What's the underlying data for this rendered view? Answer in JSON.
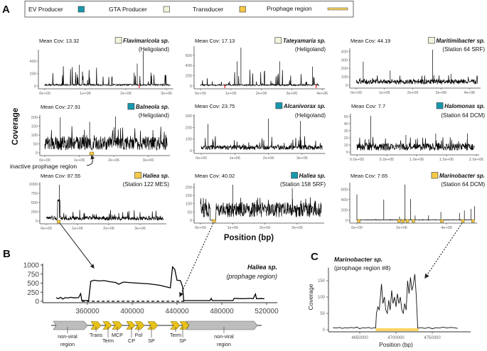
{
  "figure": {
    "panel_letters": [
      "A",
      "B",
      "C"
    ],
    "legend": {
      "items": [
        {
          "label": "EV Producer",
          "color": "#1798ad"
        },
        {
          "label": "GTA Producer",
          "color": "#f3f3dc"
        },
        {
          "label": "Transducer",
          "color": "#f7c948"
        },
        {
          "label": "Prophage region",
          "color": "#f9d462"
        }
      ]
    },
    "shared_ylabel": "Coverage",
    "shared_xlabel": "Position (bp)",
    "annotation_inactive": "inactive prophage region",
    "colors": {
      "trace": "#000000",
      "highlight_mark": "#e0201b",
      "gene_viral": "#e8c21a",
      "gene_nonviral": "#bdbdbd"
    }
  },
  "chart_data": [
    {
      "type": "line",
      "mean_cov_label": "Mean Cov: 13.32",
      "organism": "Flavimaricola sp.",
      "location": "(Heligoland)",
      "role": "GTA Producer",
      "xlim": [
        0,
        3100000
      ],
      "ylim": [
        0,
        560
      ],
      "yticks": [
        0,
        200,
        400
      ],
      "xticks": [
        0,
        1000000,
        2000000,
        3000000
      ],
      "xtick_labels": [
        "0e+00",
        "1e+06",
        "2e+06",
        "3e+06"
      ],
      "typical_coverage": 20,
      "spike_max": 350,
      "peaks": [
        [
          2430000,
          560
        ],
        [
          2280000,
          360
        ],
        [
          850000,
          340
        ]
      ],
      "highlight_marks": [
        2330000
      ],
      "prophage_regions": []
    },
    {
      "type": "line",
      "mean_cov_label": "Mean Cov: 17.13",
      "organism": "Tateyamaria sp.",
      "location": "(Heligoland)",
      "role": "GTA Producer",
      "xlim": [
        0,
        3900000
      ],
      "ylim": [
        0,
        750
      ],
      "yticks": [
        0,
        200,
        400,
        600
      ],
      "xticks": [
        0,
        1000000,
        2000000,
        3000000,
        4000000
      ],
      "xtick_labels": [
        "0e+00",
        "1e+06",
        "2e+06",
        "3e+06",
        "4e+06"
      ],
      "typical_coverage": 20,
      "spike_max": 320,
      "peaks": [
        [
          1330000,
          750
        ],
        [
          1200000,
          480
        ],
        [
          2600000,
          480
        ],
        [
          3680000,
          380
        ]
      ],
      "highlight_marks": [
        800000,
        3800000
      ],
      "prophage_regions": []
    },
    {
      "type": "line",
      "mean_cov_label": "Mean Cov: 44.19",
      "organism": "Maritimibacter sp.",
      "location": "(Station 64 SRF)",
      "role": "GTA Producer",
      "xlim": [
        0,
        4300000
      ],
      "ylim": [
        0,
        420
      ],
      "yticks": [
        0,
        100,
        200,
        300,
        400
      ],
      "xticks": [
        0,
        1000000,
        2000000,
        3000000,
        4000000
      ],
      "xtick_labels": [
        "0e+00",
        "1e+06",
        "2e+06",
        "3e+06",
        "4e+06"
      ],
      "typical_coverage": 45,
      "spike_max": 120,
      "peaks": [
        [
          250000,
          280
        ],
        [
          2700000,
          420
        ],
        [
          1200000,
          175
        ],
        [
          3350000,
          135
        ]
      ],
      "highlight_marks": [],
      "prophage_regions": []
    },
    {
      "type": "line",
      "mean_cov_label": "Mean Cov: 27.91",
      "organism": "Balneola sp.",
      "location": "(Heligoland)",
      "role": "EV Producer",
      "xlim": [
        0,
        3550000
      ],
      "ylim": [
        0,
        205
      ],
      "yticks": [
        0,
        50,
        100,
        150,
        200
      ],
      "xticks": [
        0,
        1000000,
        2000000,
        3000000
      ],
      "xtick_labels": [
        "0e+00",
        "1e+06",
        "2e+06",
        "3e+06"
      ],
      "typical_coverage": 60,
      "spike_max": 160,
      "peaks": [
        [
          2050000,
          205
        ],
        [
          450000,
          200
        ],
        [
          1300000,
          175
        ]
      ],
      "highlight_marks": [],
      "prophage_regions": [
        [
          1300000,
          1420000
        ]
      ]
    },
    {
      "type": "line",
      "mean_cov_label": "Mean Cov: 23.75",
      "organism": "Alcanivorax sp.",
      "location": "(Heligoland)",
      "role": "EV Producer",
      "xlim": [
        0,
        3600000
      ],
      "ylim": [
        0,
        300
      ],
      "yticks": [
        0,
        100,
        200,
        300
      ],
      "xticks": [
        0,
        1000000,
        2000000,
        3000000
      ],
      "xtick_labels": [
        "0e+00",
        "1e+06",
        "2e+06",
        "3e+06"
      ],
      "typical_coverage": 30,
      "spike_max": 125,
      "peaks": [
        [
          200000,
          230
        ],
        [
          2000000,
          275
        ],
        [
          2950000,
          255
        ]
      ],
      "highlight_marks": [],
      "prophage_regions": []
    },
    {
      "type": "line",
      "mean_cov_label": "Mean Cov: 7.7",
      "organism": "Halomonas sp.",
      "location": "(Station 64 DCM)",
      "role": "EV Producer",
      "xlim": [
        0,
        1970000
      ],
      "ylim": [
        0,
        52
      ],
      "yticks": [
        0,
        10,
        20,
        30,
        40,
        50
      ],
      "xticks": [
        0,
        500000,
        1000000,
        1500000,
        2000000
      ],
      "xtick_labels": [
        "0.0e+00",
        "5.0e+05",
        "1.0e+06",
        "1.5e+06",
        "2.0e+06"
      ],
      "typical_coverage": 8,
      "spike_max": 22,
      "peaks": [
        [
          230000,
          51
        ],
        [
          1320000,
          26
        ],
        [
          1850000,
          26
        ],
        [
          820000,
          24
        ]
      ],
      "highlight_marks": [],
      "prophage_regions": []
    },
    {
      "type": "line",
      "mean_cov_label": "Mean Cov: 87.55",
      "organism": "Haliea sp.",
      "location": "(Station 122 MES)",
      "role": "Transducer",
      "xlim": [
        0,
        3750000
      ],
      "ylim": [
        0,
        1000
      ],
      "yticks": [
        0,
        250,
        500,
        750,
        1000
      ],
      "xticks": [
        0,
        1000000,
        2000000,
        3000000
      ],
      "xtick_labels": [
        "0e+00",
        "1e+06",
        "2e+06",
        "3e+06"
      ],
      "typical_coverage": 80,
      "spike_max": 300,
      "peaks": [
        [
          420000,
          980
        ]
      ],
      "plateau": [
        360000,
        440000,
        580
      ],
      "highlight_marks": [],
      "prophage_regions": [
        [
          350000,
          450000
        ]
      ]
    },
    {
      "type": "line",
      "mean_cov_label": "Mean Cov: 40.02",
      "organism": "Haliea sp.",
      "location": "(Station 158 SRF)",
      "role": "EV Producer",
      "xlim": [
        0,
        3750000
      ],
      "ylim": [
        0,
        215
      ],
      "yticks": [
        0,
        50,
        100,
        150,
        200
      ],
      "xticks": [
        0,
        1000000,
        2000000,
        3000000
      ],
      "xtick_labels": [
        "0e+00",
        "1e+06",
        "2e+06",
        "3e+06"
      ],
      "typical_coverage": 70,
      "spike_max": 140,
      "peaks": [
        [
          1000000,
          215
        ],
        [
          2850000,
          195
        ]
      ],
      "zero_gap": [
        300000,
        480000
      ],
      "highlight_marks": [],
      "prophage_regions": [
        [
          370000,
          470000
        ]
      ]
    },
    {
      "type": "line",
      "mean_cov_label": "Mean Cov: 7.65",
      "organism": "Marinobacter sp.",
      "location": "(Station 64 DCM)",
      "role": "Transducer",
      "xlim": [
        0,
        5250000
      ],
      "ylim": [
        0,
        700
      ],
      "yticks": [
        0,
        200,
        400,
        600
      ],
      "xticks": [
        0,
        2000000,
        4000000
      ],
      "xtick_labels": [
        "0e+00",
        "2e+06",
        "4e+06"
      ],
      "typical_coverage": 8,
      "spike_max": 15,
      "peaks": [
        [
          0,
          500
        ],
        [
          1200000,
          400
        ],
        [
          2150000,
          690
        ],
        [
          2400000,
          410
        ],
        [
          3750000,
          160
        ],
        [
          4800000,
          190
        ],
        [
          5100000,
          220
        ],
        [
          5250000,
          270
        ],
        [
          1900000,
          70
        ],
        [
          2600000,
          90
        ],
        [
          3200000,
          95
        ],
        [
          4580000,
          140
        ]
      ],
      "highlight_marks": [],
      "prophage_regions": [
        [
          20000,
          80000
        ],
        [
          1820000,
          1880000
        ],
        [
          2000000,
          2060000
        ],
        [
          2190000,
          2250000
        ],
        [
          2460000,
          2520000
        ],
        [
          3730000,
          3790000
        ],
        [
          4670000,
          4740000
        ],
        [
          5120000,
          5180000
        ]
      ]
    },
    {
      "type": "line",
      "panel": "B",
      "organism": "Haliea sp.",
      "subtitle": "(prophage region)",
      "xlim": [
        320000,
        525000
      ],
      "ylim": [
        0,
        1000
      ],
      "yticks": [
        0,
        250,
        500,
        750,
        1000
      ],
      "xticks": [
        360000,
        400000,
        440000,
        480000,
        520000
      ],
      "xtick_labels": [
        "360000",
        "400000",
        "440000",
        "480000",
        "520000"
      ],
      "series": [
        {
          "style": "solid",
          "points": [
            [
              332000,
              100
            ],
            [
              334000,
              70
            ],
            [
              336000,
              110
            ],
            [
              338000,
              60
            ],
            [
              340000,
              100
            ],
            [
              343000,
              90
            ],
            [
              345000,
              110
            ],
            [
              348000,
              95
            ],
            [
              352000,
              100
            ],
            [
              354000,
              210
            ],
            [
              355000,
              20
            ],
            [
              361000,
              20
            ],
            [
              363000,
              550
            ],
            [
              366000,
              580
            ],
            [
              370000,
              560
            ],
            [
              375000,
              570
            ],
            [
              380000,
              540
            ],
            [
              385000,
              520
            ],
            [
              388000,
              470
            ],
            [
              392000,
              530
            ],
            [
              396000,
              520
            ],
            [
              400000,
              510
            ],
            [
              405000,
              500
            ],
            [
              410000,
              490
            ],
            [
              415000,
              480
            ],
            [
              420000,
              460
            ],
            [
              425000,
              440
            ],
            [
              430000,
              400
            ],
            [
              434000,
              370
            ],
            [
              436000,
              950
            ],
            [
              438000,
              880
            ],
            [
              440000,
              580
            ],
            [
              443000,
              570
            ],
            [
              445000,
              400
            ],
            [
              446000,
              20
            ],
            [
              469500,
              20
            ],
            [
              470500,
              80
            ],
            [
              471500,
              20
            ],
            [
              490000,
              20
            ],
            [
              491000,
              80
            ],
            [
              495000,
              75
            ],
            [
              500000,
              70
            ],
            [
              505000,
              80
            ],
            [
              508000,
              70
            ],
            [
              510000,
              200
            ],
            [
              511000,
              70
            ],
            [
              515000,
              75
            ],
            [
              518000,
              70
            ]
          ]
        },
        {
          "style": "dashed",
          "points": [
            [
              355000,
              0
            ],
            [
              447000,
              0
            ]
          ]
        }
      ],
      "genes": [
        {
          "label": "non-viral\nregion",
          "kind": "nonviral"
        },
        {
          "label": "Trans",
          "kind": "viral"
        },
        {
          "label": "Term",
          "kind": "viral"
        },
        {
          "label": "MCP",
          "kind": "viral"
        },
        {
          "label": "CP",
          "kind": "viral"
        },
        {
          "label": "Pol",
          "kind": "viral"
        },
        {
          "label": "SP",
          "kind": "viral"
        },
        {
          "label": "Term",
          "kind": "viral"
        },
        {
          "label": "SP",
          "kind": "viral"
        },
        {
          "label": "non-viral\nregion",
          "kind": "nonviral"
        }
      ]
    },
    {
      "type": "line",
      "panel": "C",
      "organism": "Marinobacter sp.",
      "subtitle": "(prophage region #8)",
      "ylabel": "Coverage",
      "xlabel": "Position (bp)",
      "xlim": [
        4607000,
        4790000
      ],
      "ylim": [
        0,
        190
      ],
      "yticks": [
        0,
        50,
        100,
        150
      ],
      "xticks": [
        4650000,
        4700000,
        4750000
      ],
      "xtick_labels": [
        "4650000",
        "4700000",
        "4750000"
      ],
      "prophage_region": [
        4672000,
        4731000
      ],
      "points": [
        [
          4613000,
          6
        ],
        [
          4618000,
          5
        ],
        [
          4622000,
          7
        ],
        [
          4626000,
          4
        ],
        [
          4630000,
          6
        ],
        [
          4634000,
          5
        ],
        [
          4638000,
          7
        ],
        [
          4642000,
          5
        ],
        [
          4646000,
          8
        ],
        [
          4650000,
          3
        ],
        [
          4654000,
          6
        ],
        [
          4658000,
          5
        ],
        [
          4662000,
          7
        ],
        [
          4666000,
          4
        ],
        [
          4670000,
          6
        ],
        [
          4672000,
          5
        ],
        [
          4673000,
          50
        ],
        [
          4675000,
          70
        ],
        [
          4677000,
          60
        ],
        [
          4680000,
          140
        ],
        [
          4682000,
          80
        ],
        [
          4684000,
          100
        ],
        [
          4686000,
          60
        ],
        [
          4688000,
          50
        ],
        [
          4690000,
          90
        ],
        [
          4692000,
          60
        ],
        [
          4694000,
          120
        ],
        [
          4696000,
          80
        ],
        [
          4698000,
          100
        ],
        [
          4700000,
          70
        ],
        [
          4702000,
          110
        ],
        [
          4704000,
          80
        ],
        [
          4706000,
          100
        ],
        [
          4708000,
          60
        ],
        [
          4710000,
          50
        ],
        [
          4712000,
          80
        ],
        [
          4714000,
          60
        ],
        [
          4716000,
          150
        ],
        [
          4718000,
          110
        ],
        [
          4720000,
          160
        ],
        [
          4722000,
          120
        ],
        [
          4724000,
          140
        ],
        [
          4726000,
          170
        ],
        [
          4728000,
          100
        ],
        [
          4730000,
          5
        ],
        [
          4735000,
          6
        ],
        [
          4740000,
          4
        ],
        [
          4745000,
          7
        ],
        [
          4750000,
          3
        ],
        [
          4755000,
          6
        ],
        [
          4760000,
          5
        ],
        [
          4765000,
          8
        ],
        [
          4770000,
          5
        ],
        [
          4775000,
          7
        ],
        [
          4780000,
          6
        ],
        [
          4785000,
          4
        ]
      ]
    }
  ]
}
